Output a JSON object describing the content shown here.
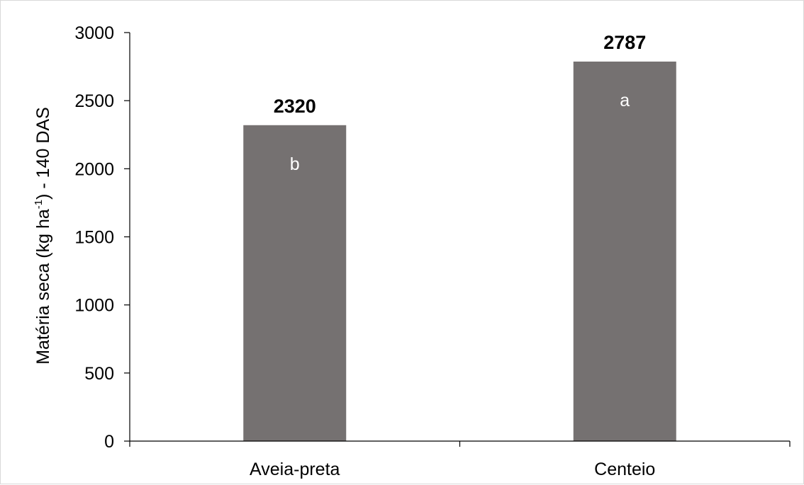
{
  "chart_data": {
    "type": "bar",
    "categories": [
      "Aveia-preta",
      "Centeio"
    ],
    "values": [
      2320,
      2787
    ],
    "data_labels": [
      "2320",
      "2787"
    ],
    "significance_letters": [
      "b",
      "a"
    ],
    "ylabel": {
      "before_sup": "Matéria seca (kg ha",
      "sup": "-1",
      "after_sup": ") - 140 DAS"
    },
    "ylim": [
      0,
      3000
    ],
    "yticks": [
      0,
      500,
      1000,
      1500,
      2000,
      2500,
      3000
    ],
    "grid": false,
    "legend": "none",
    "bar_color": "#757171",
    "axis_color": "#000000"
  }
}
